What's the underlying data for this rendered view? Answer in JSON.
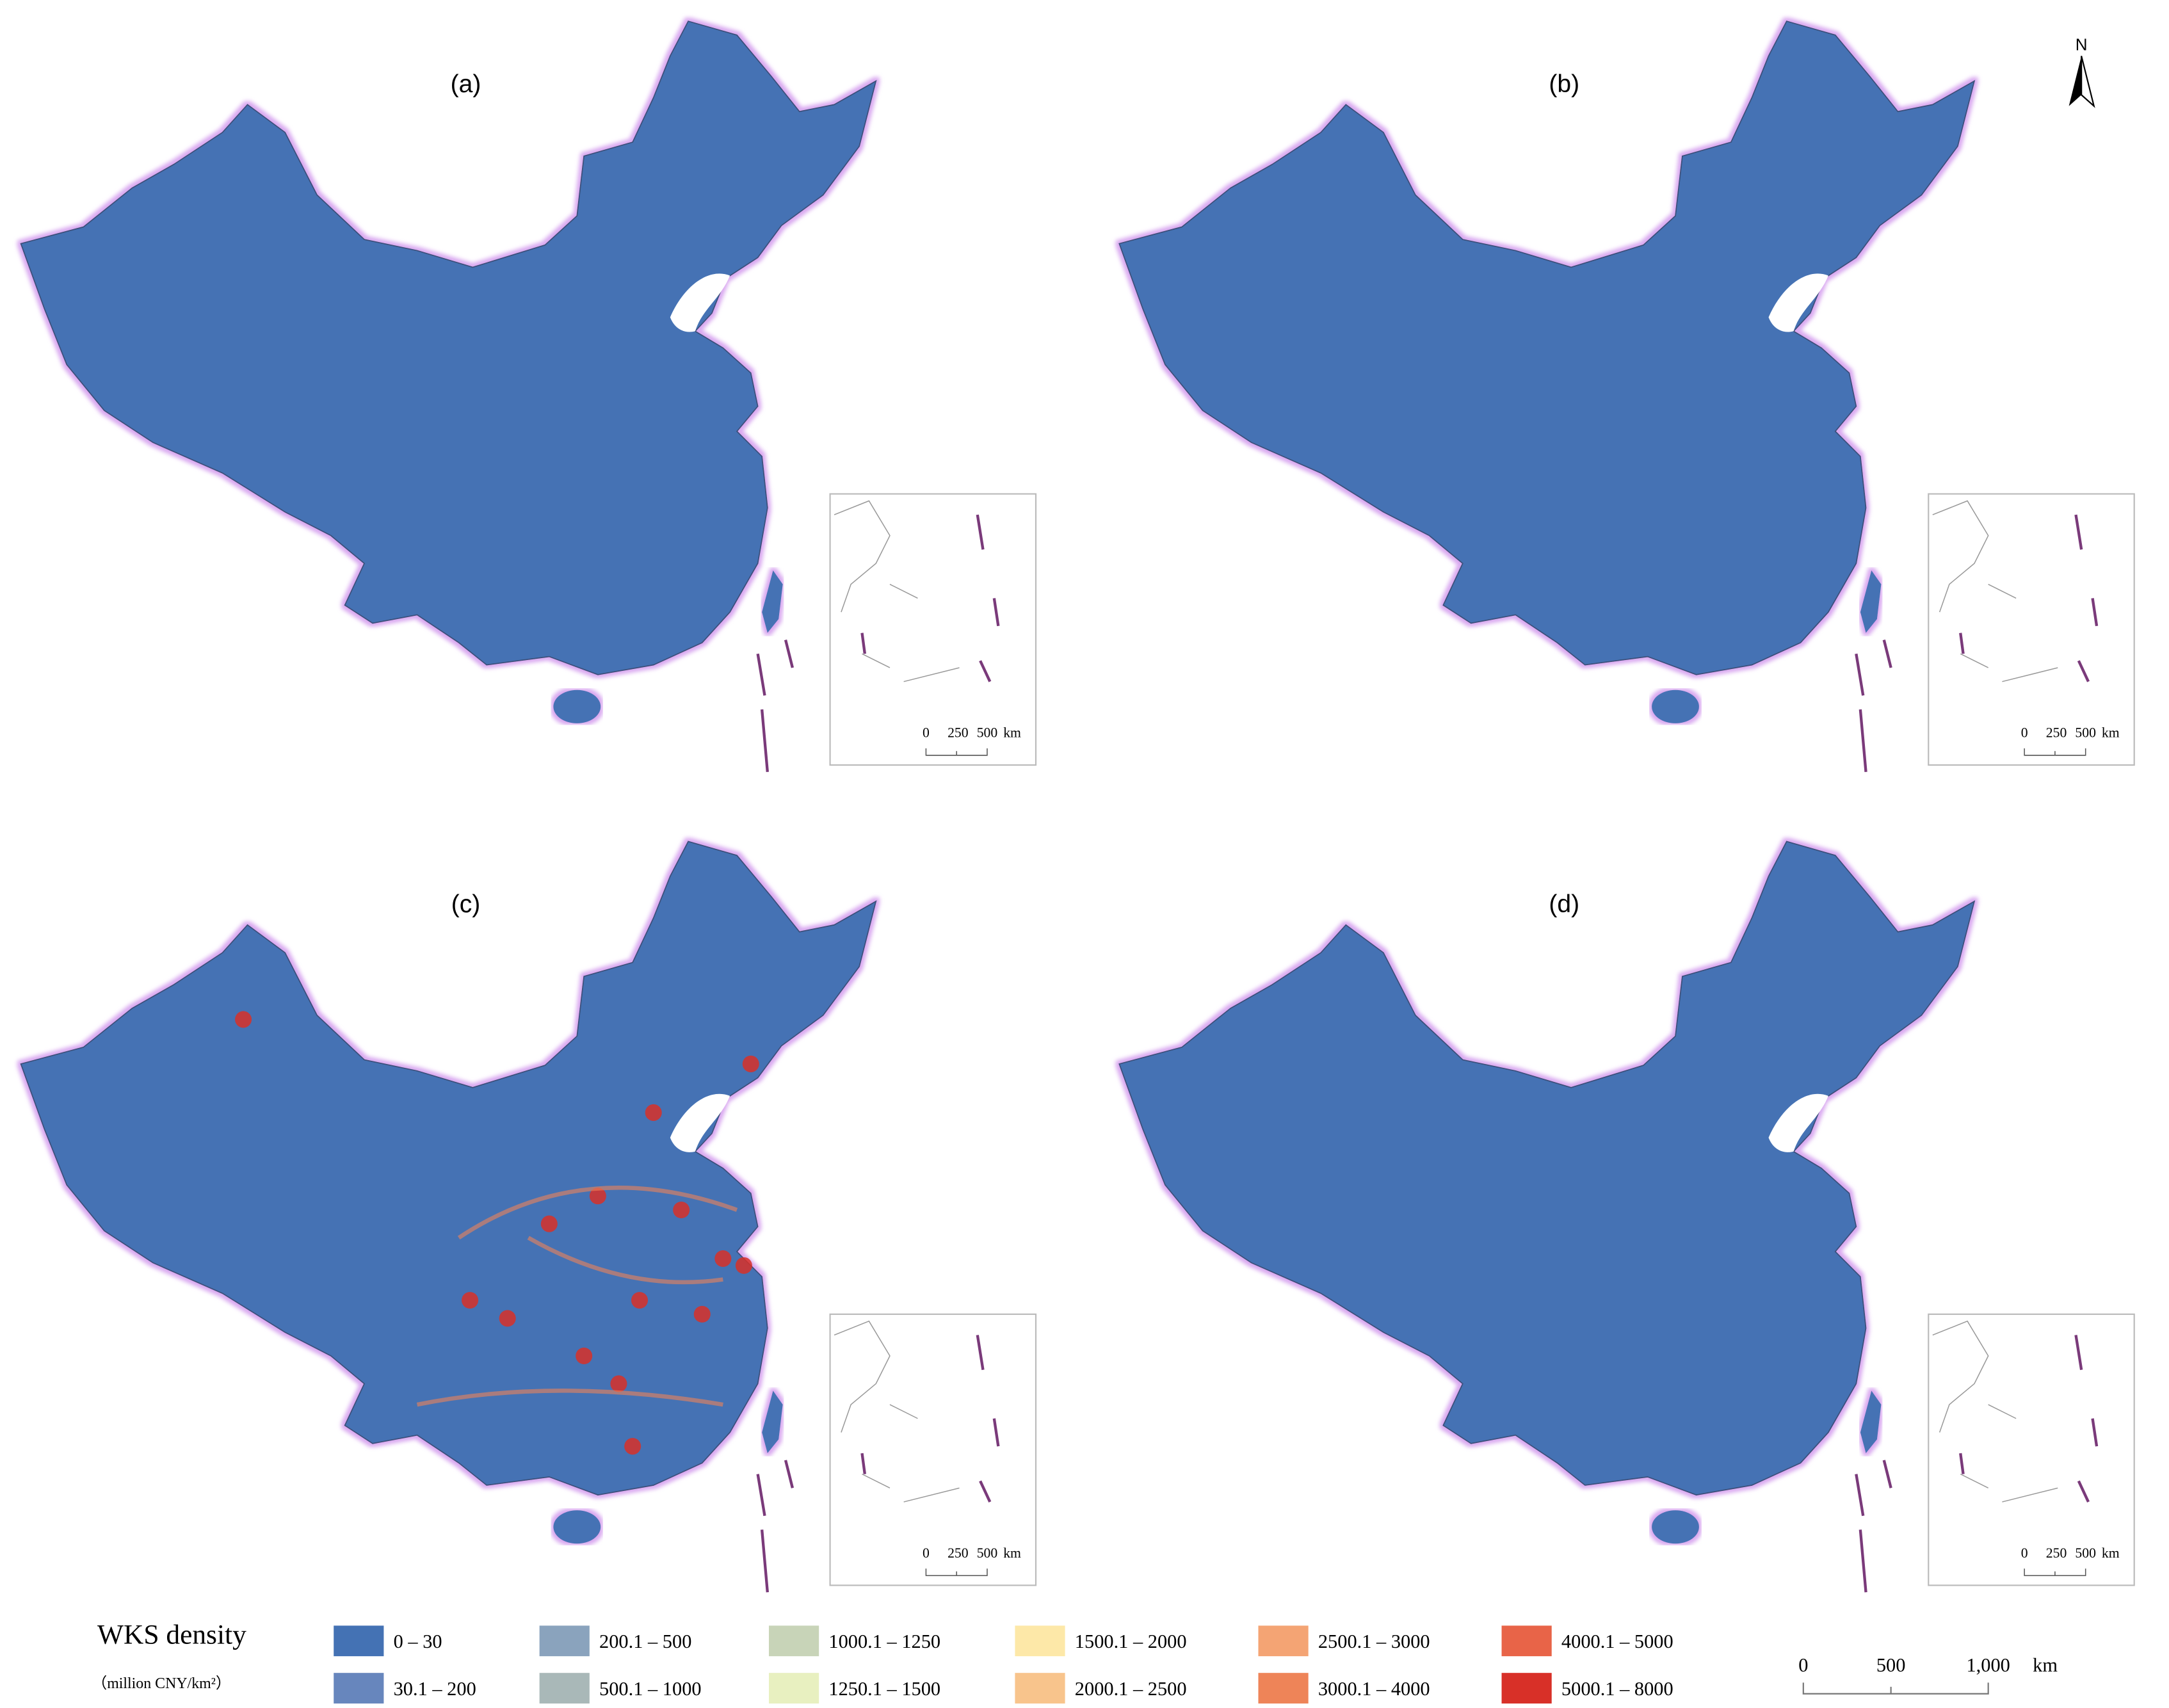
{
  "panels": [
    {
      "label": "(a)"
    },
    {
      "label": "(b)"
    },
    {
      "label": "(c)"
    },
    {
      "label": "(d)"
    }
  ],
  "north": "N",
  "inset_scale": [
    "0",
    "250",
    "500",
    "km"
  ],
  "legend": {
    "title": "WKS density",
    "unit": "（million CNY/km²）",
    "items": [
      {
        "label": "0 – 30",
        "color": "#4472b4"
      },
      {
        "label": "30.1 – 200",
        "color": "#6786bd"
      },
      {
        "label": "200.1 – 500",
        "color": "#8aa3bd"
      },
      {
        "label": "500.1 – 1000",
        "color": "#a9b8b8"
      },
      {
        "label": "1000.1 – 1250",
        "color": "#c8d4b8"
      },
      {
        "label": "1250.1 – 1500",
        "color": "#e8f0c0"
      },
      {
        "label": "1500.1 – 2000",
        "color": "#fde8a8"
      },
      {
        "label": "2000.1 – 2500",
        "color": "#f8c48c"
      },
      {
        "label": "2500.1 – 3000",
        "color": "#f4a474"
      },
      {
        "label": "3000.1 – 4000",
        "color": "#ee8458"
      },
      {
        "label": "4000.1 – 5000",
        "color": "#e86448"
      },
      {
        "label": "5000.1 – 8000",
        "color": "#d83028"
      }
    ]
  },
  "scale_bar": [
    "0",
    "500",
    "1,000",
    "km"
  ]
}
